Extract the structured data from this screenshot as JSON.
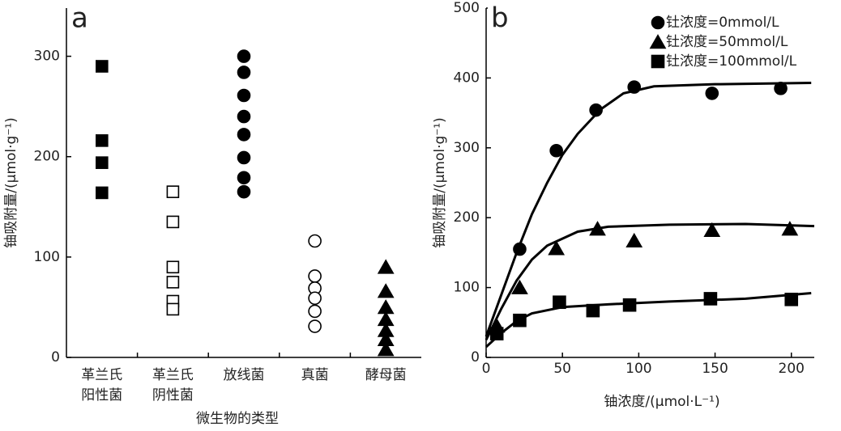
{
  "chart_data": [
    {
      "type": "strip",
      "title": "a",
      "ylabel": "铀吸附量/(μmol·g⁻¹)",
      "xlabel": "微生物的类型",
      "categories": [
        [
          "革兰氏",
          "阳性菌"
        ],
        [
          "革兰氏",
          "阴性菌"
        ],
        [
          "放线菌"
        ],
        [
          "真菌"
        ],
        [
          "酵母菌"
        ]
      ],
      "values": [
        [
          290,
          216,
          194,
          164
        ],
        [
          165,
          135,
          90,
          75,
          56,
          48
        ],
        [
          300,
          284,
          261,
          240,
          222,
          199,
          179,
          165
        ],
        [
          116,
          81,
          69,
          59,
          46,
          31
        ],
        [
          90,
          66,
          50,
          38,
          27,
          18,
          8
        ]
      ],
      "markers": [
        "square",
        "square",
        "circle",
        "circle",
        "triangle"
      ],
      "filled": [
        true,
        false,
        true,
        false,
        true
      ],
      "color": "#000000",
      "ylim": [
        0,
        348
      ],
      "yticks": [
        0,
        100,
        200,
        300
      ]
    },
    {
      "type": "scatter",
      "title": "b",
      "ylabel": "铀吸附量/(μmol·g⁻¹)",
      "xlabel": "铀浓度/(μmol·L⁻¹)",
      "legend": "upper right",
      "color": "#000000",
      "series": [
        {
          "name": "钍浓度=0mmol/L",
          "marker": "circle",
          "x": [
            22,
            46,
            72,
            97,
            148,
            193
          ],
          "values": [
            155,
            296,
            354,
            387,
            378,
            385
          ],
          "fit_x": [
            0,
            10,
            20,
            30,
            40,
            50,
            60,
            75,
            90,
            110,
            150,
            213
          ],
          "fit_values": [
            30,
            90,
            150,
            205,
            250,
            290,
            320,
            355,
            378,
            388,
            391,
            393
          ]
        },
        {
          "name": "钍浓度=50mmol/L",
          "marker": "triangle",
          "x": [
            7,
            22,
            46,
            73,
            97,
            148,
            199
          ],
          "values": [
            45,
            100,
            156,
            184,
            167,
            182,
            184
          ],
          "fit_x": [
            0,
            10,
            20,
            30,
            40,
            60,
            80,
            120,
            170,
            215
          ],
          "fit_values": [
            25,
            70,
            110,
            140,
            160,
            180,
            187,
            190,
            191,
            188
          ]
        },
        {
          "name": "钍浓度=100mmol/L",
          "marker": "square",
          "x": [
            7,
            22,
            48,
            70,
            94,
            147,
            200
          ],
          "values": [
            34,
            53,
            79,
            67,
            75,
            84,
            83
          ],
          "fit_x": [
            0,
            10,
            20,
            30,
            50,
            80,
            120,
            170,
            213
          ],
          "fit_values": [
            15,
            35,
            52,
            63,
            72,
            76,
            80,
            84,
            92
          ]
        }
      ],
      "xlim": [
        0,
        215
      ],
      "xticks": [
        0,
        50,
        100,
        150,
        200
      ],
      "ylim": [
        0,
        500
      ],
      "yticks": [
        0,
        100,
        200,
        300,
        400,
        500
      ]
    }
  ]
}
